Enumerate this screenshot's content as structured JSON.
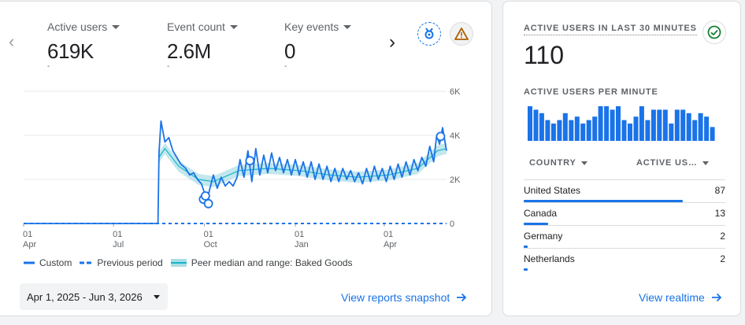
{
  "metrics": [
    {
      "label": "Active users",
      "value": "619K",
      "sub": "-"
    },
    {
      "label": "Event count",
      "value": "2.6M",
      "sub": "-"
    },
    {
      "label": "Key events",
      "value": "0",
      "sub": "-"
    }
  ],
  "icons": {
    "prev": "chevron-left-icon",
    "next": "chevron-right-icon",
    "insights": "insights-badge-icon",
    "warning": "warning-triangle-icon",
    "check": "check-circle-icon",
    "arrow": "arrow-right-icon"
  },
  "colors": {
    "series": "#1a73e8",
    "peer_band": "#a8dde5",
    "warning": "#b06000",
    "ok": "#188038",
    "link": "#1a73e8"
  },
  "chart_data": {
    "type": "line",
    "x_ticks": [
      {
        "day": "01",
        "month": "Apr"
      },
      {
        "day": "01",
        "month": "Jul"
      },
      {
        "day": "01",
        "month": "Oct"
      },
      {
        "day": "01",
        "month": "Jan"
      },
      {
        "day": "01",
        "month": "Apr"
      }
    ],
    "y_ticks": [
      "6K",
      "4K",
      "2K",
      "0"
    ],
    "ylim": [
      0,
      6000
    ],
    "x_range": [
      "2025-04-01",
      "2026-06-03"
    ],
    "gridlines": true,
    "series": [
      {
        "name": "Custom",
        "style": "solid",
        "points": [
          [
            "2025-04-01",
            0
          ],
          [
            "2025-08-01",
            0
          ],
          [
            "2025-08-15",
            0
          ],
          [
            "2025-08-16",
            3200
          ],
          [
            "2025-08-18",
            4650
          ],
          [
            "2025-08-22",
            3700
          ],
          [
            "2025-08-26",
            3900
          ],
          [
            "2025-08-30",
            3300
          ],
          [
            "2025-09-03",
            3000
          ],
          [
            "2025-09-07",
            2700
          ],
          [
            "2025-09-12",
            2500
          ],
          [
            "2025-09-16",
            2200
          ],
          [
            "2025-09-20",
            2300
          ],
          [
            "2025-09-24",
            2000
          ],
          [
            "2025-09-28",
            1800
          ],
          [
            "2025-10-02",
            1250
          ],
          [
            "2025-10-04",
            1100
          ],
          [
            "2025-10-06",
            1500
          ],
          [
            "2025-10-10",
            2200
          ],
          [
            "2025-10-14",
            1600
          ],
          [
            "2025-10-18",
            2100
          ],
          [
            "2025-10-22",
            1700
          ],
          [
            "2025-10-26",
            1900
          ],
          [
            "2025-10-30",
            1700
          ],
          [
            "2025-11-03",
            2100
          ],
          [
            "2025-11-06",
            2900
          ],
          [
            "2025-11-10",
            2100
          ],
          [
            "2025-11-14",
            3300
          ],
          [
            "2025-11-18",
            1900
          ],
          [
            "2025-11-22",
            3400
          ],
          [
            "2025-11-26",
            2200
          ],
          [
            "2025-11-30",
            3100
          ],
          [
            "2025-12-04",
            2300
          ],
          [
            "2025-12-08",
            3200
          ],
          [
            "2025-12-12",
            2400
          ],
          [
            "2025-12-16",
            3000
          ],
          [
            "2025-12-20",
            2300
          ],
          [
            "2025-12-24",
            2900
          ],
          [
            "2025-12-28",
            2200
          ],
          [
            "2026-01-01",
            2900
          ],
          [
            "2026-01-05",
            2200
          ],
          [
            "2026-01-09",
            2800
          ],
          [
            "2026-01-13",
            2100
          ],
          [
            "2026-01-17",
            2800
          ],
          [
            "2026-01-21",
            2000
          ],
          [
            "2026-01-25",
            2700
          ],
          [
            "2026-01-29",
            2000
          ],
          [
            "2026-02-02",
            2600
          ],
          [
            "2026-02-06",
            1900
          ],
          [
            "2026-02-10",
            2500
          ],
          [
            "2026-02-14",
            1900
          ],
          [
            "2026-02-18",
            2500
          ],
          [
            "2026-02-22",
            2000
          ],
          [
            "2026-02-26",
            2400
          ],
          [
            "2026-03-02",
            1900
          ],
          [
            "2026-03-06",
            2300
          ],
          [
            "2026-03-10",
            1800
          ],
          [
            "2026-03-14",
            2500
          ],
          [
            "2026-03-18",
            1900
          ],
          [
            "2026-03-22",
            2600
          ],
          [
            "2026-03-26",
            2000
          ],
          [
            "2026-03-30",
            2500
          ],
          [
            "2026-04-03",
            1900
          ],
          [
            "2026-04-07",
            2600
          ],
          [
            "2026-04-11",
            2000
          ],
          [
            "2026-04-15",
            2700
          ],
          [
            "2026-04-19",
            2100
          ],
          [
            "2026-04-23",
            2800
          ],
          [
            "2026-04-27",
            2200
          ],
          [
            "2026-05-01",
            2900
          ],
          [
            "2026-05-05",
            2400
          ],
          [
            "2026-05-09",
            3000
          ],
          [
            "2026-05-13",
            2600
          ],
          [
            "2026-05-17",
            3500
          ],
          [
            "2026-05-21",
            2800
          ],
          [
            "2026-05-24",
            4000
          ],
          [
            "2026-05-27",
            3600
          ],
          [
            "2026-05-30",
            4350
          ],
          [
            "2026-06-03",
            3300
          ]
        ]
      },
      {
        "name": "Previous period",
        "style": "dashed",
        "points": [
          [
            "2025-04-01",
            0
          ],
          [
            "2026-06-03",
            0
          ]
        ]
      },
      {
        "name": "Peer median and range: Baked Goods",
        "style": "band",
        "points": [
          [
            "2025-08-16",
            3000
          ],
          [
            "2025-08-22",
            3400
          ],
          [
            "2025-09-05",
            2600
          ],
          [
            "2025-09-25",
            2000
          ],
          [
            "2025-10-10",
            1900
          ],
          [
            "2025-11-05",
            2400
          ],
          [
            "2025-12-05",
            2500
          ],
          [
            "2026-01-05",
            2400
          ],
          [
            "2026-02-05",
            2200
          ],
          [
            "2026-03-05",
            2100
          ],
          [
            "2026-04-05",
            2200
          ],
          [
            "2026-05-05",
            2500
          ],
          [
            "2026-05-25",
            3300
          ],
          [
            "2026-06-03",
            3400
          ]
        ]
      }
    ],
    "markers": [
      [
        "2025-09-30",
        1100
      ],
      [
        "2025-10-02",
        1250
      ],
      [
        "2025-10-05",
        900
      ],
      [
        "2025-11-16",
        2850
      ],
      [
        "2026-05-28",
        3950
      ]
    ]
  },
  "legend": [
    {
      "label": "Custom",
      "style": "solid"
    },
    {
      "label": "Previous period",
      "style": "dashed"
    },
    {
      "label": "Peer median and range: Baked Goods",
      "style": "band"
    }
  ],
  "date_range": "Apr 1, 2025 - Jun 3, 2026",
  "view_snapshot": "View reports snapshot",
  "realtime": {
    "title": "ACTIVE USERS IN LAST 30 MINUTES",
    "value": "110",
    "per_minute_label": "ACTIVE USERS PER MINUTE",
    "per_minute": [
      10,
      9,
      8,
      6,
      5,
      6,
      8,
      6,
      7,
      5,
      6,
      7,
      10,
      10,
      9,
      10,
      6,
      5,
      7,
      10,
      6,
      9,
      9,
      9,
      5,
      9,
      9,
      8,
      6,
      8,
      7,
      4
    ],
    "col_country": "COUNTRY",
    "col_users": "ACTIVE US…",
    "rows": [
      {
        "country": "United States",
        "count": "87",
        "share": 0.79
      },
      {
        "country": "Canada",
        "count": "13",
        "share": 0.12
      },
      {
        "country": "Germany",
        "count": "2",
        "share": 0.02
      },
      {
        "country": "Netherlands",
        "count": "2",
        "share": 0.02
      }
    ],
    "view_realtime": "View realtime"
  }
}
